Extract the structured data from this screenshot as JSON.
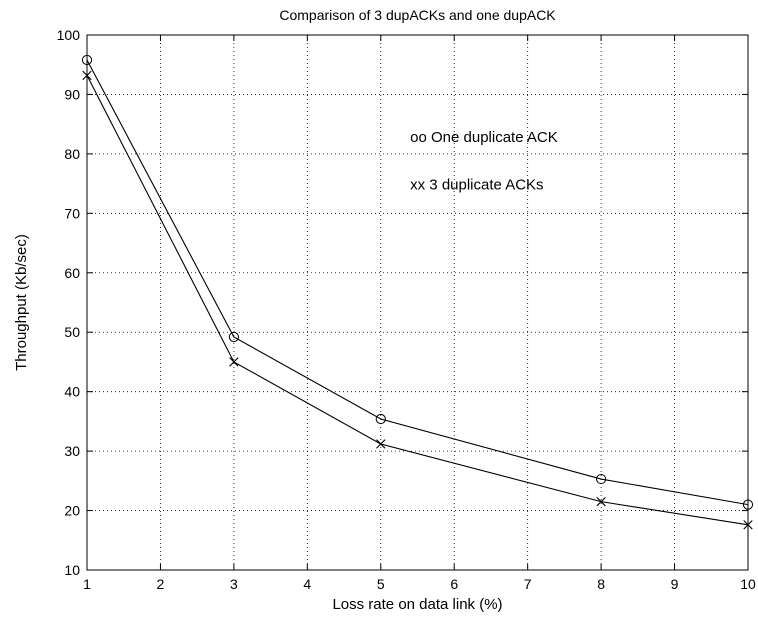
{
  "chart_data": {
    "type": "line",
    "title": "Comparison of 3 dupACKs and one dupACK",
    "xlabel": "Loss rate on data link (%)",
    "ylabel": "Throughput (Kb/sec)",
    "xlim": [
      1,
      10
    ],
    "ylim": [
      10,
      100
    ],
    "xticks": [
      1,
      2,
      3,
      4,
      5,
      6,
      7,
      8,
      9,
      10
    ],
    "yticks": [
      10,
      20,
      30,
      40,
      50,
      60,
      70,
      80,
      90,
      100
    ],
    "grid": true,
    "series": [
      {
        "marker": "o",
        "x": [
          1,
          3,
          5,
          8,
          10
        ],
        "y": [
          95.8,
          49.2,
          35.4,
          25.3,
          21.0
        ]
      },
      {
        "marker": "x",
        "x": [
          1,
          3,
          5,
          8,
          10
        ],
        "y": [
          93.2,
          45.0,
          31.2,
          21.5,
          17.6
        ]
      }
    ],
    "annotations": [
      {
        "text": "oo  One duplicate ACK",
        "x": 5.4,
        "y": 82
      },
      {
        "text": "xx  3 duplicate ACKs",
        "x": 5.4,
        "y": 74
      }
    ]
  }
}
